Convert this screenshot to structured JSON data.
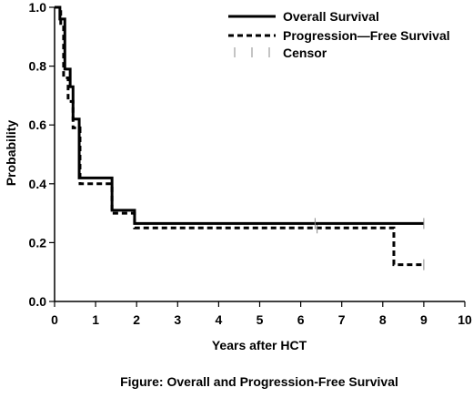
{
  "chart_data": {
    "type": "line",
    "title": "",
    "caption": "Figure: Overall and Progression-Free Survival",
    "xlabel": "Years after HCT",
    "ylabel": "Probability",
    "xlim": [
      0,
      10
    ],
    "ylim": [
      0.0,
      1.0
    ],
    "x_ticks": [
      "0",
      "1",
      "2",
      "3",
      "4",
      "5",
      "6",
      "7",
      "8",
      "9",
      "10"
    ],
    "y_ticks": [
      "0.0",
      "0.2",
      "0.4",
      "0.6",
      "0.8",
      "1.0"
    ],
    "grid": false,
    "legend_position": "top-right",
    "legend": {
      "overall": "Overall Survival",
      "pfs": "Progression—Free Survival",
      "censor": "Censor"
    },
    "series": [
      {
        "name": "Overall Survival",
        "style": "solid",
        "color": "#000000",
        "steps": [
          [
            0.0,
            1.0
          ],
          [
            0.13,
            0.96
          ],
          [
            0.25,
            0.79
          ],
          [
            0.38,
            0.73
          ],
          [
            0.45,
            0.62
          ],
          [
            0.6,
            0.42
          ],
          [
            1.37,
            0.42
          ],
          [
            1.4,
            0.31
          ],
          [
            1.95,
            0.31
          ],
          [
            1.95,
            0.265
          ],
          [
            9.0,
            0.265
          ]
        ],
        "censor_x": [
          6.35,
          9.0
        ]
      },
      {
        "name": "Progression—Free Survival",
        "style": "dashed",
        "color": "#000000",
        "steps": [
          [
            0.0,
            1.0
          ],
          [
            0.15,
            0.94
          ],
          [
            0.22,
            0.76
          ],
          [
            0.33,
            0.68
          ],
          [
            0.45,
            0.59
          ],
          [
            0.62,
            0.4
          ],
          [
            1.35,
            0.4
          ],
          [
            1.4,
            0.3
          ],
          [
            1.95,
            0.3
          ],
          [
            1.95,
            0.25
          ],
          [
            8.27,
            0.25
          ],
          [
            8.27,
            0.125
          ],
          [
            9.0,
            0.125
          ]
        ],
        "censor_x": [
          6.4,
          9.0
        ]
      }
    ]
  }
}
